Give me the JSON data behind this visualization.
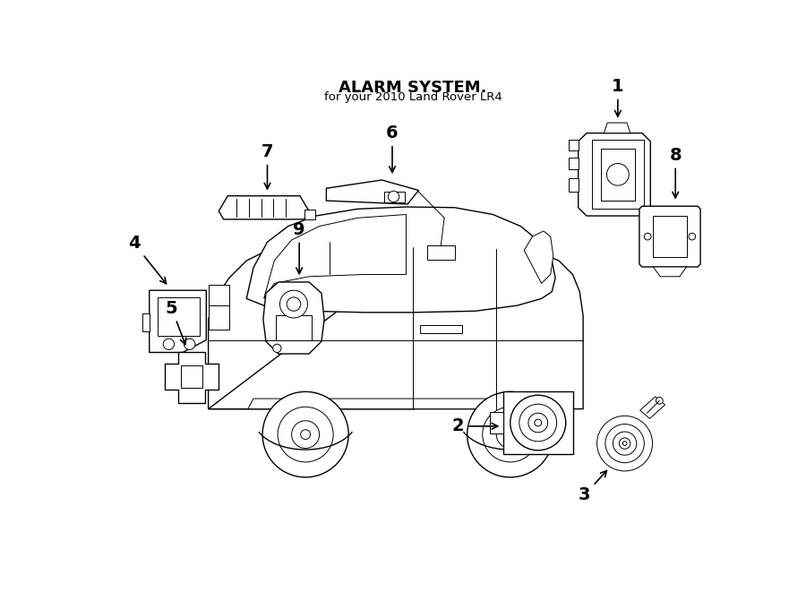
{
  "title": "ALARM SYSTEM.",
  "subtitle": "for your 2010 Land Rover LR4",
  "bg": "#ffffff",
  "lc": "#000000",
  "lw_thin": 0.7,
  "lw_med": 1.0,
  "lw_thick": 1.4,
  "label_fontsize": 14
}
